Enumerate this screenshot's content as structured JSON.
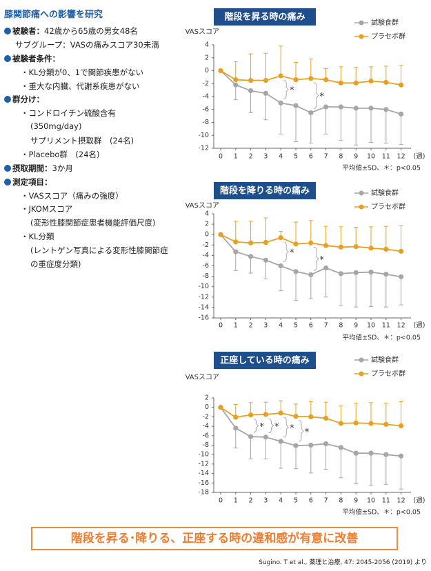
{
  "study": {
    "title": "膝関節痛への影響を研究",
    "sections": [
      {
        "heading": "被験者：",
        "text": "42歳から65歳の男女48名",
        "lines": [
          "サブグループ：VASの痛みスコア30未満"
        ]
      },
      {
        "heading": "被験者条件：",
        "lines": [
          "・KL分類が0、1で関節疾患がない",
          "・重大な内臓、代謝系疾患がない"
        ]
      },
      {
        "heading": "群分け：",
        "lines": [
          "・コンドロイチン硫酸含有",
          "(350mg/day)",
          "サプリメント摂取群　(24名)",
          "・Placebo群　(24名)"
        ]
      },
      {
        "heading": "摂取期間：",
        "text": "3か月"
      },
      {
        "heading": "測定項目：",
        "lines": [
          "・VASスコア（痛みの強度）",
          "・JKOMスコア",
          "(変形性膝関節症患者機能評価尺度)",
          "・KL分類",
          "(レントゲン写真による変形性膝関節症",
          "の重症度分類)"
        ]
      }
    ]
  },
  "chart_data": [
    {
      "type": "line",
      "title": "階段を昇る時の痛み",
      "y_label": "VASスコア",
      "x_unit": "(週)",
      "note": "平均値±SD、＊：p<0.05",
      "categories": [
        "0",
        "1",
        "2",
        "3",
        "4",
        "5",
        "6",
        "7",
        "8",
        "9",
        "10",
        "11",
        "12"
      ],
      "ylim": [
        -12,
        4
      ],
      "yticks": [
        4,
        2,
        0,
        -2,
        -4,
        -6,
        -8,
        -10,
        -12
      ],
      "series": [
        {
          "name": "試験食群",
          "color": "#a6a6a6",
          "values": [
            0,
            -2.2,
            -3.1,
            -3.5,
            -5.0,
            -5.4,
            -6.5,
            -5.6,
            -5.6,
            -5.8,
            -5.8,
            -6.0,
            -6.7
          ],
          "errors": [
            null,
            2.3,
            3.4,
            4.1,
            4.8,
            5.6,
            4.7,
            4.2,
            5.2,
            5.7,
            5.3,
            5.2,
            4.7
          ]
        },
        {
          "name": "プラセボ群",
          "color": "#e8a020",
          "values": [
            0,
            -1.4,
            -1.5,
            -1.5,
            -0.8,
            -1.4,
            -1.2,
            -1.4,
            -1.9,
            -1.9,
            -1.6,
            -1.8,
            -2.2
          ],
          "errors": [
            null,
            2.8,
            4.1,
            4.2,
            4.6,
            2.7,
            3.0,
            1.7,
            2.5,
            2.4,
            2.2,
            2.5,
            3.0
          ]
        }
      ],
      "annotations": [
        {
          "category": "4",
          "text": "*"
        },
        {
          "category": "6",
          "text": "*"
        }
      ]
    },
    {
      "type": "line",
      "title": "階段を降りる時の痛み",
      "y_label": "VASスコア",
      "x_unit": "(週)",
      "note": "平均値±SD、＊：p<0.05",
      "categories": [
        "0",
        "1",
        "2",
        "3",
        "4",
        "5",
        "6",
        "7",
        "8",
        "9",
        "10",
        "11",
        "12"
      ],
      "ylim": [
        -16,
        4
      ],
      "yticks": [
        4,
        2,
        0,
        -2,
        -4,
        -6,
        -8,
        -10,
        -12,
        -14,
        -16
      ],
      "series": [
        {
          "name": "試験食群",
          "color": "#a6a6a6",
          "values": [
            0,
            -3.3,
            -4.2,
            -4.9,
            -6.0,
            -7.1,
            -7.7,
            -6.4,
            -7.5,
            -7.3,
            -7.2,
            -7.6,
            -8.1
          ],
          "errors": [
            null,
            3.6,
            3.2,
            3.6,
            4.8,
            5.5,
            4.6,
            5.6,
            6.1,
            6.6,
            6.6,
            6.3,
            5.4
          ]
        },
        {
          "name": "プラセボ群",
          "color": "#e8a020",
          "values": [
            0,
            -1.4,
            -1.6,
            -1.5,
            -0.6,
            -1.8,
            -1.6,
            -2.1,
            -2.4,
            -2.3,
            -2.6,
            -2.8,
            -3.2
          ],
          "errors": [
            null,
            4.0,
            4.2,
            4.7,
            1.2,
            4.2,
            4.3,
            3.7,
            3.9,
            3.7,
            4.1,
            4.4,
            4.9
          ]
        }
      ],
      "annotations": [
        {
          "category": "4",
          "text": "*"
        },
        {
          "category": "6",
          "text": "*"
        }
      ]
    },
    {
      "type": "line",
      "title": "正座している時の痛み",
      "y_label": "VASスコア",
      "x_unit": "(週)",
      "note": "平均値±SD、＊：p<0.05",
      "categories": [
        "0",
        "1",
        "2",
        "3",
        "4",
        "5",
        "6",
        "7",
        "8",
        "9",
        "10",
        "11",
        "12"
      ],
      "ylim": [
        -18,
        2
      ],
      "yticks": [
        2,
        0,
        -2,
        -4,
        -6,
        -8,
        -10,
        -12,
        -14,
        -16,
        -18
      ],
      "series": [
        {
          "name": "試験食群",
          "color": "#a6a6a6",
          "values": [
            0,
            -4.4,
            -6.2,
            -6.3,
            -7.2,
            -8.1,
            -8.0,
            -7.7,
            -8.5,
            -9.7,
            -9.7,
            -10.0,
            -10.3
          ],
          "errors": [
            null,
            4.2,
            4.7,
            4.6,
            5.7,
            4.9,
            5.9,
            5.4,
            6.4,
            6.5,
            6.8,
            6.3,
            7.0
          ]
        },
        {
          "name": "プラセボ群",
          "color": "#e8a020",
          "values": [
            0,
            -2.1,
            -1.6,
            -1.5,
            -1.2,
            -1.9,
            -2.0,
            -2.3,
            -3.4,
            -3.3,
            -3.4,
            -3.6,
            -3.9
          ],
          "errors": [
            null,
            2.7,
            2.6,
            2.6,
            2.6,
            2.6,
            3.2,
            3.4,
            3.7,
            4.2,
            4.4,
            4.5,
            5.1
          ]
        }
      ],
      "annotations": [
        {
          "category": "2",
          "text": "*"
        },
        {
          "category": "3",
          "text": "*"
        },
        {
          "category": "4",
          "text": "*"
        },
        {
          "category": "5",
          "text": "*"
        }
      ]
    }
  ],
  "conclusion": "階段を昇る･降りる、正座する時の違和感が有意に改善",
  "citation": "Sugino. T et al., 薬理と治療, 47: 2045-2056 (2019) より"
}
